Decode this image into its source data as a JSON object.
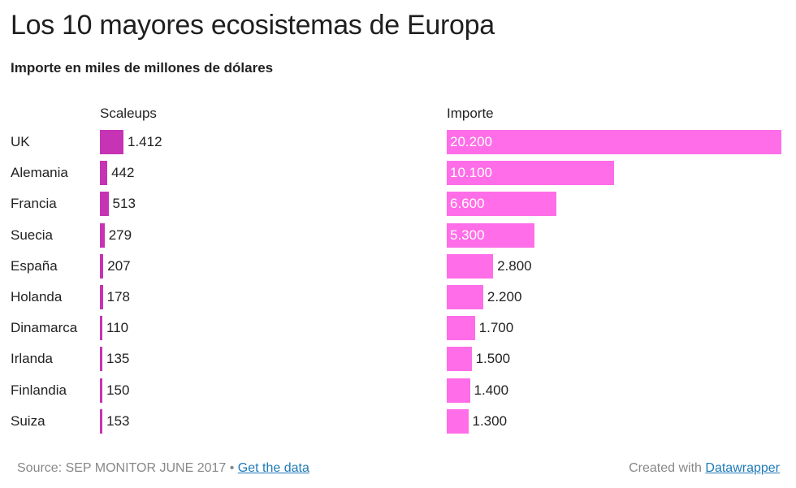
{
  "chart_data": {
    "type": "bar",
    "orientation": "horizontal",
    "title": "Los 10 mayores ecosistemas de Europa",
    "subtitle": "Importe en miles de millones de dólares",
    "categories": [
      "UK",
      "Alemania",
      "Francia",
      "Suecia",
      "España",
      "Holanda",
      "Dinamarca",
      "Irlanda",
      "Finlandia",
      "Suiza"
    ],
    "series": [
      {
        "name": "Scaleups",
        "values": [
          1412,
          442,
          513,
          279,
          207,
          178,
          110,
          135,
          150,
          153
        ],
        "labels": [
          "1.412",
          "442",
          "513",
          "279",
          "207",
          "178",
          "110",
          "135",
          "150",
          "153"
        ],
        "color": "#c633b5"
      },
      {
        "name": "Importe",
        "values": [
          20200,
          10100,
          6600,
          5300,
          2800,
          2200,
          1700,
          1500,
          1400,
          1300
        ],
        "labels": [
          "20.200",
          "10.100",
          "6.600",
          "5.300",
          "2.800",
          "2.200",
          "1.700",
          "1.500",
          "1.400",
          "1.300"
        ],
        "color": "#ff6de8"
      }
    ],
    "grid": false,
    "legend": "none"
  },
  "footer": {
    "source": "Source: SEP MONITOR JUNE 2017",
    "separator": "•",
    "data_link": "Get the data",
    "created_with": "Created with",
    "tool_link": "Datawrapper"
  },
  "colors": {
    "link": "#1f7ab8",
    "footer_text": "#888888"
  }
}
